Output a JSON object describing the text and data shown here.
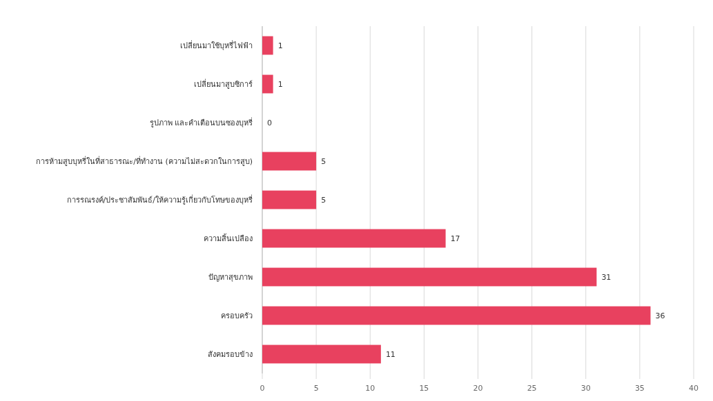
{
  "chart_data": {
    "type": "bar",
    "orientation": "horizontal",
    "categories": [
      "เปลี่ยนมาใช้บุหรี่ไฟฟ้า",
      "เปลี่ยนมาสูบซิการ์",
      "รูปภาพ และคำเตือนบนซองบุหรี่",
      "การห้ามสูบบุหรี่ในที่สาธารณะ/ที่ทำงาน (ความไม่สะดวกในการสูบ)",
      "การรณรงค์/ประชาสัมพันธ์/ให้ความรู้เกี่ยวกับโทษของบุหรี่",
      "ความสิ้นเปลือง",
      "ปัญหาสุขภาพ",
      "ครอบครัว",
      "สังคมรอบข้าง"
    ],
    "values": [
      1,
      1,
      0,
      5,
      5,
      17,
      31,
      36,
      11
    ],
    "color": "#e8415f",
    "data_labels": true,
    "grid": "x",
    "xlim": [
      0,
      40
    ],
    "xticks": [
      0,
      5,
      10,
      15,
      20,
      25,
      30,
      35,
      40
    ]
  }
}
